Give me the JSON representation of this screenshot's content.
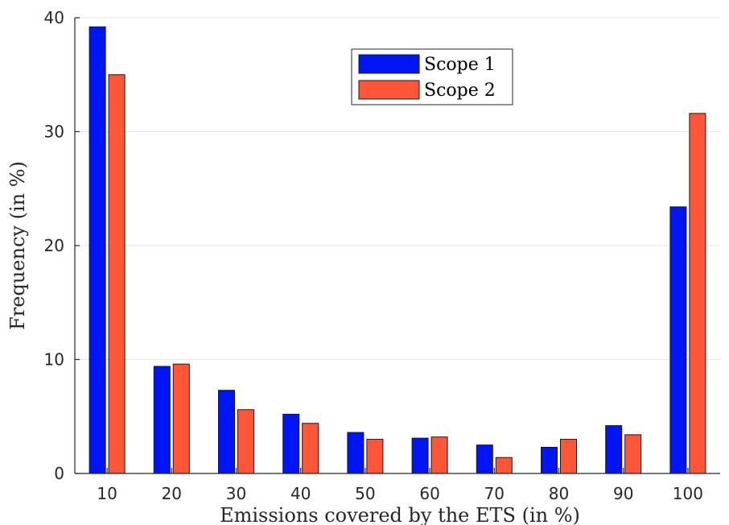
{
  "chart_data": {
    "type": "bar",
    "title": "",
    "xlabel": "Emissions covered by the ETS (in %)",
    "ylabel": "Frequency (in %)",
    "categories": [
      "10",
      "20",
      "30",
      "40",
      "50",
      "60",
      "70",
      "80",
      "90",
      "100"
    ],
    "series": [
      {
        "name": "Scope 1",
        "color": "#0015f5",
        "values": [
          39.2,
          9.4,
          7.3,
          5.2,
          3.6,
          3.1,
          2.5,
          2.3,
          4.2,
          23.4
        ]
      },
      {
        "name": "Scope 2",
        "color": "#ff5638",
        "values": [
          35.0,
          9.6,
          5.6,
          4.4,
          3.0,
          3.2,
          1.4,
          3.0,
          3.4,
          31.6
        ]
      }
    ],
    "ylim": [
      0,
      40
    ],
    "yticks": [
      "0",
      "10",
      "20",
      "30",
      "40"
    ],
    "grid": "horizontal",
    "legend_position": "top-right-inside"
  }
}
